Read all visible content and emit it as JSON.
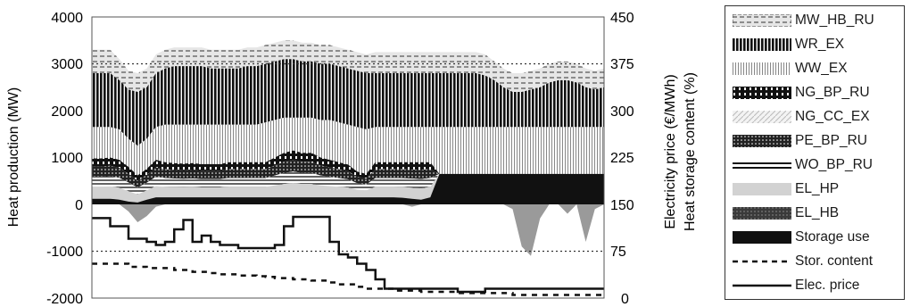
{
  "chart_data": {
    "type": "area",
    "ylabel_left": "Heat production (MW)",
    "ylabel_right_1": "Electricity price (€/MWh)",
    "ylabel_right_2": "Heat storage content (%)",
    "left_ticks": [
      "4000",
      "3000",
      "2000",
      "1000",
      "0",
      "-1000",
      "-2000"
    ],
    "right_ticks": [
      "450",
      "375",
      "300",
      "225",
      "150",
      "75",
      "0"
    ],
    "ylim_left": [
      -2000,
      4000
    ],
    "ylim_right": [
      0,
      450
    ],
    "n_periods": 57,
    "legend": [
      {
        "name": "MW_HB_RU",
        "pattern": "dashes"
      },
      {
        "name": "WR_EX",
        "pattern": "vstripes-dense"
      },
      {
        "name": "WW_EX",
        "pattern": "vstripes-light"
      },
      {
        "name": "NG_BP_RU",
        "pattern": "vblocks"
      },
      {
        "name": "NG_CC_EX",
        "pattern": "diagonal-light"
      },
      {
        "name": "PE_BP_RU",
        "pattern": "dots-dark"
      },
      {
        "name": "WO_BP_RU",
        "pattern": "double-line"
      },
      {
        "name": "EL_HP",
        "pattern": "light-grey"
      },
      {
        "name": "EL_HB",
        "pattern": "dark-dots"
      },
      {
        "name": "Storage use",
        "pattern": "solid-dark"
      },
      {
        "name": "Stor. content",
        "pattern": "dashed-line"
      },
      {
        "name": "Elec. price",
        "pattern": "solid-line"
      }
    ],
    "series_left_MW": {
      "storage_use": [
        120,
        120,
        120,
        100,
        60,
        40,
        100,
        150,
        150,
        150,
        150,
        150,
        150,
        150,
        150,
        150,
        150,
        150,
        150,
        150,
        150,
        150,
        150,
        150,
        150,
        150,
        150,
        150,
        150,
        150,
        150,
        150,
        150,
        150,
        140,
        120,
        100,
        150,
        650,
        650,
        650,
        650,
        650,
        650,
        650,
        650,
        650,
        650,
        650,
        650,
        650,
        650,
        650,
        650,
        650,
        650,
        650
      ],
      "storage_neg": [
        0,
        0,
        0,
        0,
        -150,
        -380,
        -250,
        -50,
        0,
        0,
        0,
        0,
        0,
        0,
        0,
        0,
        0,
        0,
        0,
        0,
        0,
        0,
        0,
        0,
        0,
        0,
        0,
        0,
        0,
        0,
        0,
        0,
        0,
        0,
        0,
        -50,
        0,
        0,
        0,
        0,
        0,
        0,
        0,
        0,
        0,
        0,
        -100,
        -900,
        -1100,
        -300,
        0,
        0,
        -200,
        0,
        -800,
        -100,
        0
      ],
      "mid_layers_top": [
        980,
        980,
        1000,
        950,
        800,
        620,
        760,
        950,
        900,
        880,
        870,
        880,
        860,
        860,
        860,
        900,
        900,
        900,
        900,
        900,
        1000,
        1100,
        1150,
        1100,
        1100,
        1000,
        950,
        900,
        850,
        700,
        650,
        900,
        900,
        900,
        900,
        900,
        900,
        900,
        650,
        650,
        650,
        650,
        650,
        650,
        650,
        650,
        650,
        650,
        650,
        650,
        650,
        650,
        650,
        650,
        650,
        650,
        650
      ],
      "ngcc_top": [
        1650,
        1650,
        1650,
        1600,
        1400,
        1250,
        1400,
        1650,
        1700,
        1700,
        1700,
        1700,
        1700,
        1700,
        1700,
        1700,
        1700,
        1700,
        1700,
        1750,
        1800,
        1850,
        1850,
        1850,
        1850,
        1800,
        1800,
        1750,
        1700,
        1650,
        1600,
        1650,
        1650,
        1650,
        1650,
        1650,
        1650,
        1650,
        1650,
        1650,
        1650,
        1650,
        1650,
        1650,
        1650,
        1650,
        1650,
        1650,
        1650,
        1650,
        1650,
        1650,
        1650,
        1650,
        1650,
        1650,
        1650
      ],
      "wr_top": [
        2800,
        2800,
        2800,
        2650,
        2450,
        2400,
        2500,
        2800,
        2900,
        2950,
        2950,
        2950,
        2950,
        2900,
        2900,
        2900,
        2900,
        2950,
        2950,
        3000,
        3050,
        3100,
        3100,
        3050,
        3050,
        3000,
        3000,
        2950,
        2900,
        2850,
        2800,
        2800,
        2800,
        2800,
        2800,
        2800,
        2800,
        2800,
        2800,
        2800,
        2800,
        2800,
        2800,
        2750,
        2650,
        2500,
        2400,
        2400,
        2450,
        2500,
        2600,
        2650,
        2650,
        2600,
        2500,
        2450,
        2500
      ],
      "total_top": [
        3300,
        3300,
        3300,
        3100,
        2850,
        2800,
        2900,
        3200,
        3300,
        3350,
        3350,
        3350,
        3350,
        3300,
        3300,
        3300,
        3300,
        3350,
        3350,
        3400,
        3450,
        3500,
        3500,
        3450,
        3450,
        3400,
        3400,
        3350,
        3300,
        3250,
        3200,
        3250,
        3250,
        3250,
        3250,
        3250,
        3250,
        3250,
        3250,
        3250,
        3250,
        3250,
        3250,
        3200,
        3050,
        2900,
        2800,
        2800,
        2850,
        2900,
        3000,
        3050,
        3050,
        3000,
        2900,
        2850,
        2900
      ]
    },
    "series_right": {
      "elec_price_EUR_MWh": [
        128,
        128,
        115,
        115,
        95,
        95,
        90,
        85,
        90,
        110,
        125,
        90,
        100,
        90,
        85,
        85,
        80,
        80,
        80,
        80,
        85,
        115,
        130,
        130,
        130,
        130,
        90,
        70,
        65,
        55,
        45,
        30,
        15,
        15,
        15,
        15,
        15,
        15,
        15,
        15,
        10,
        10,
        10,
        15,
        15,
        15,
        15,
        15,
        15,
        15,
        15,
        15,
        15,
        15,
        15,
        15,
        15
      ],
      "stor_content_pct": [
        55,
        55,
        55,
        55,
        50,
        50,
        48,
        48,
        48,
        45,
        45,
        42,
        42,
        40,
        38,
        38,
        36,
        36,
        35,
        34,
        32,
        32,
        30,
        30,
        28,
        28,
        25,
        22,
        22,
        18,
        15,
        15,
        15,
        12,
        12,
        12,
        10,
        10,
        10,
        10,
        8,
        8,
        8,
        8,
        8,
        8,
        5,
        5,
        5,
        5,
        5,
        5,
        5,
        5,
        5,
        5,
        5
      ],
      "reference_dotted_level_pct": 75
    }
  }
}
